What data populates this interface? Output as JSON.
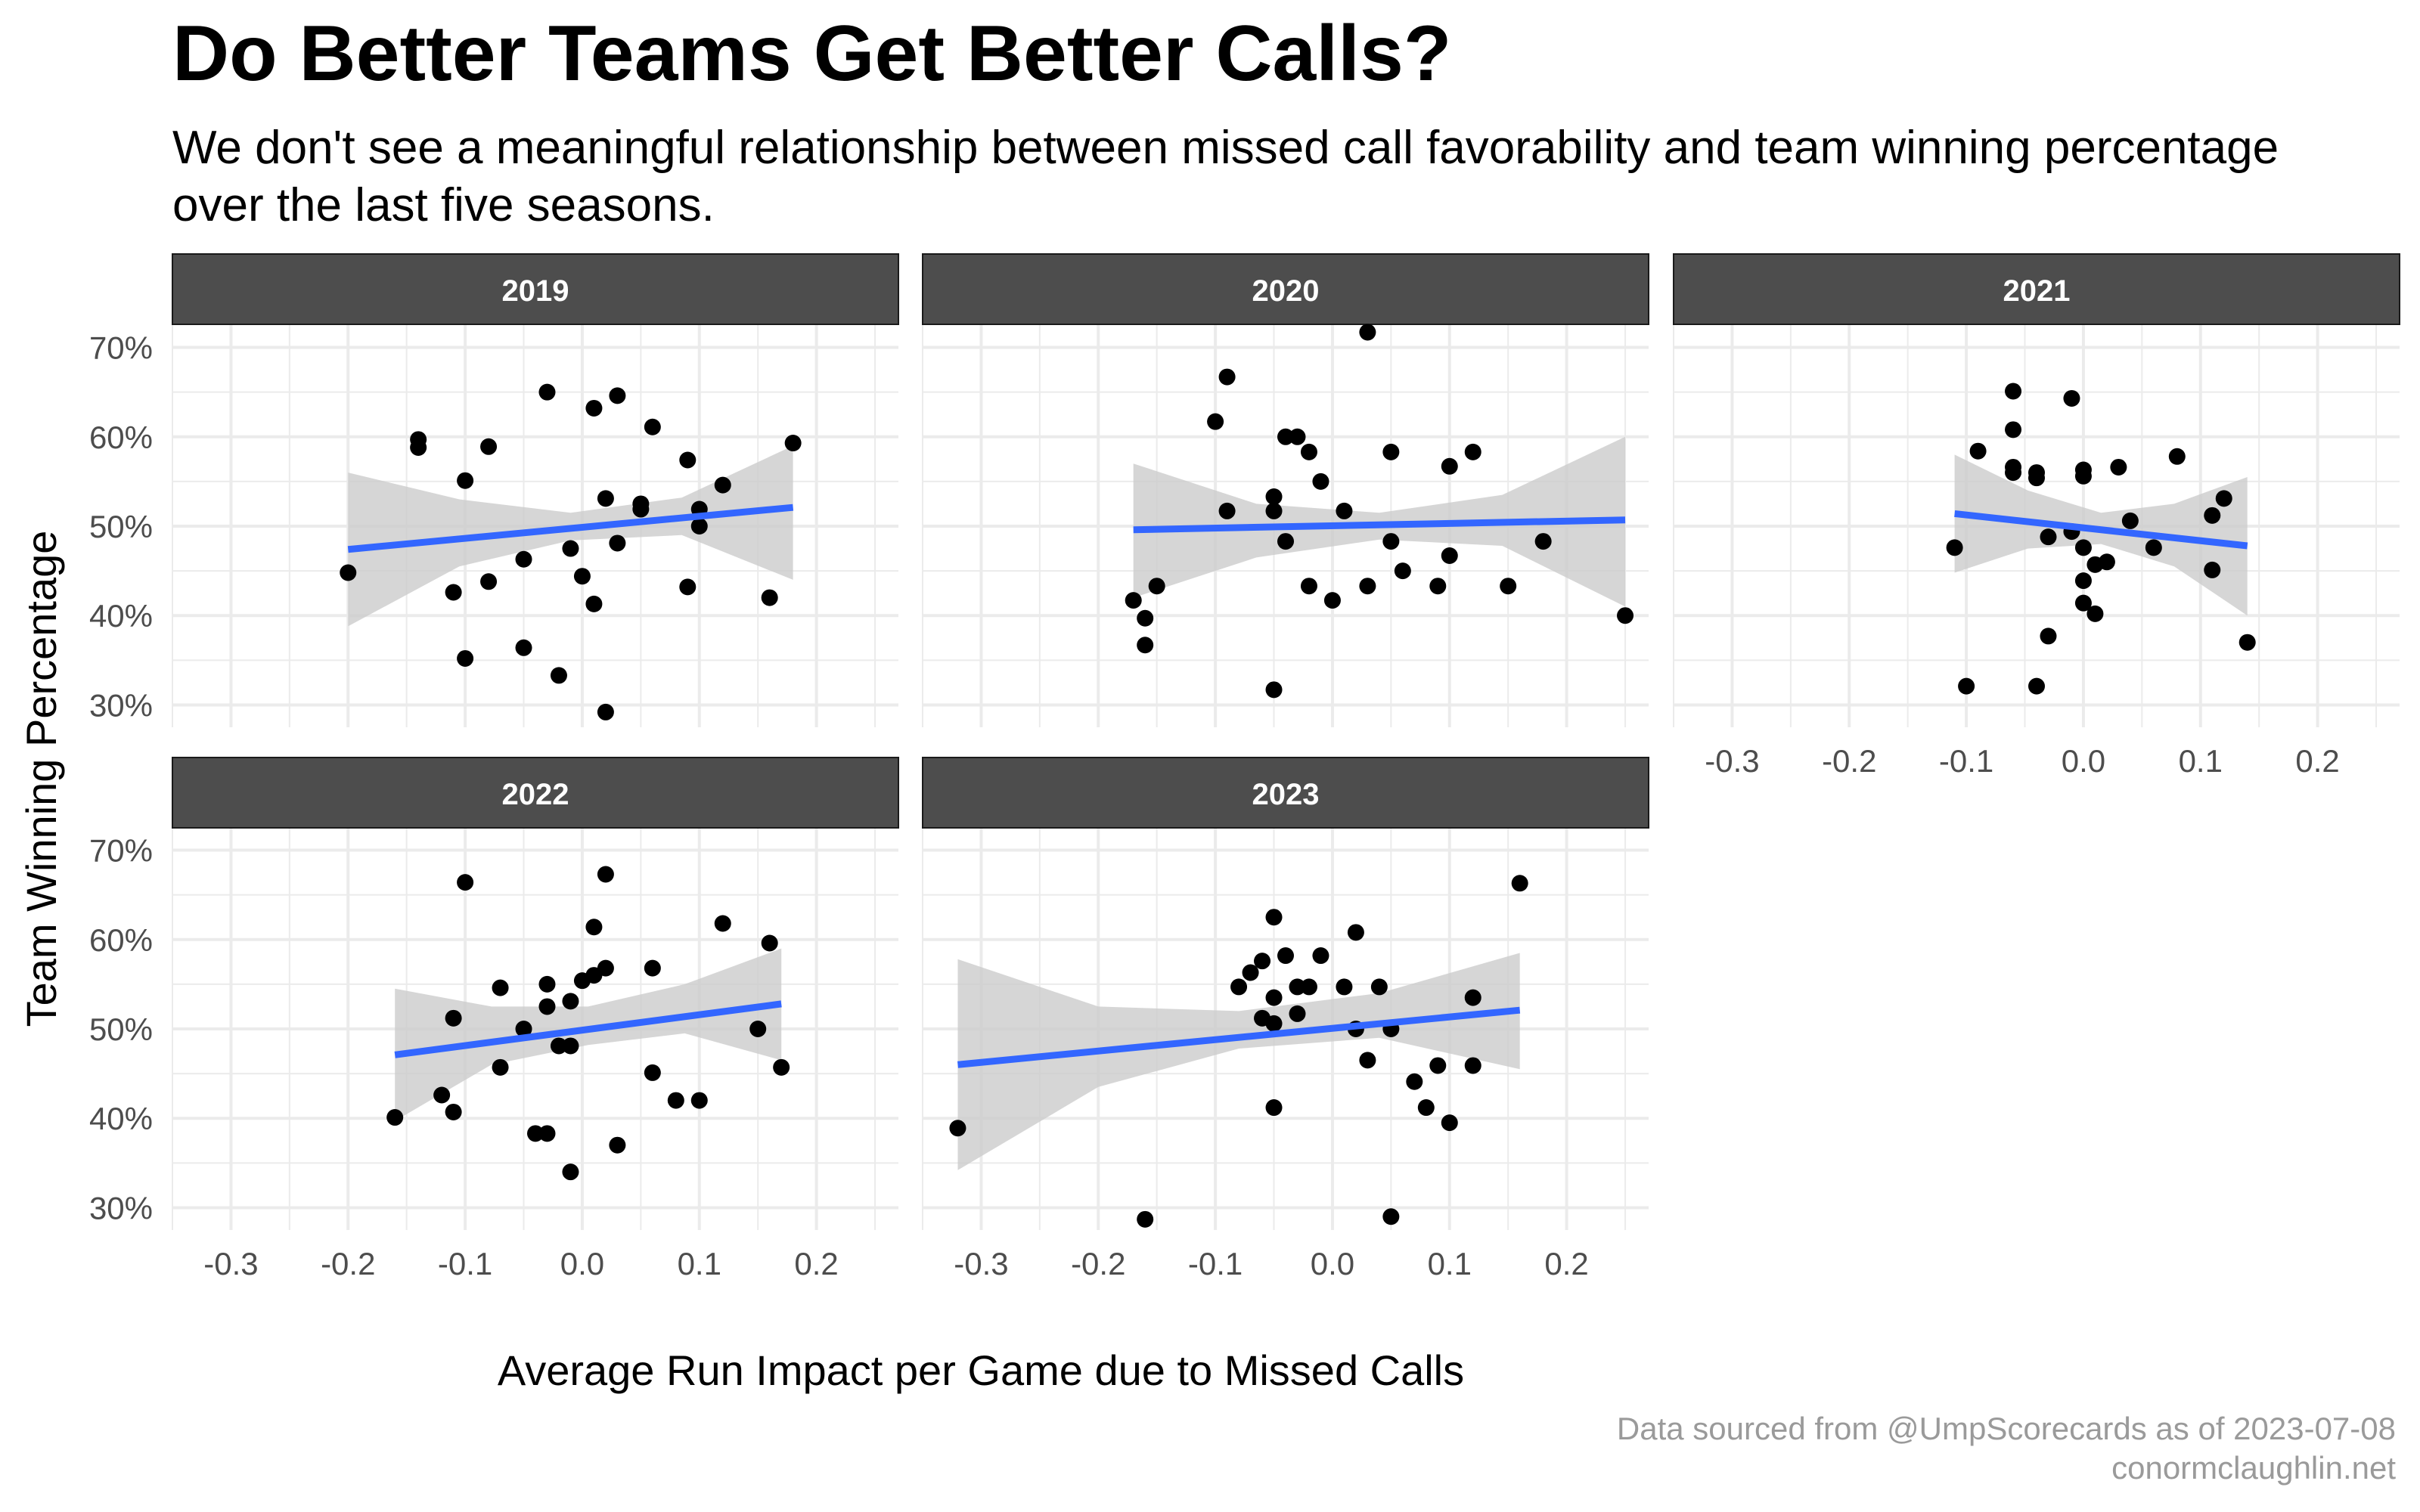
{
  "title": "Do Better Teams Get Better Calls?",
  "subtitle": "We don't see a meaningful relationship between missed call favorability and team winning percentage over the last five seasons.",
  "caption_lines": [
    "Data sourced from @UmpScorecards as of 2023-07-08",
    "conormclaughlin.net"
  ],
  "colors": {
    "point": "#000000",
    "trend": "#3366FF",
    "ribbon": "#cccccc",
    "strip": "#4d4d4d",
    "strip_text": "#ffffff",
    "grid": "#ebebeb"
  },
  "chart_data": {
    "type": "scatter",
    "xlabel": "Average Run Impact per Game due to Missed Calls",
    "ylabel": "Team Winning Percentage",
    "xlim": [
      -0.35,
      0.27
    ],
    "ylim": [
      0.275,
      0.725
    ],
    "x_ticks": [
      -0.3,
      -0.2,
      -0.1,
      0.0,
      0.1,
      0.2
    ],
    "x_tick_labels": [
      "-0.3",
      "-0.2",
      "-0.1",
      "0.0",
      "0.1",
      "0.2"
    ],
    "y_ticks": [
      0.3,
      0.4,
      0.5,
      0.6,
      0.7
    ],
    "y_tick_labels": [
      "30%",
      "40%",
      "50%",
      "60%",
      "70%"
    ],
    "facets": [
      {
        "label": "2019",
        "trend": {
          "x": [
            -0.2,
            0.18
          ],
          "y": [
            0.474,
            0.521
          ]
        },
        "ribbon_upper": [
          0.56,
          0.53,
          0.515,
          0.532,
          0.59
        ],
        "ribbon_lower": [
          0.388,
          0.455,
          0.484,
          0.49,
          0.44
        ],
        "points": [
          [
            -0.2,
            0.448
          ],
          [
            -0.14,
            0.597
          ],
          [
            -0.14,
            0.588
          ],
          [
            -0.11,
            0.426
          ],
          [
            -0.1,
            0.551
          ],
          [
            -0.1,
            0.352
          ],
          [
            -0.08,
            0.589
          ],
          [
            -0.08,
            0.438
          ],
          [
            -0.05,
            0.463
          ],
          [
            -0.05,
            0.364
          ],
          [
            -0.03,
            0.65
          ],
          [
            -0.02,
            0.333
          ],
          [
            -0.01,
            0.475
          ],
          [
            0.0,
            0.444
          ],
          [
            0.01,
            0.632
          ],
          [
            0.01,
            0.413
          ],
          [
            0.02,
            0.531
          ],
          [
            0.02,
            0.292
          ],
          [
            0.03,
            0.646
          ],
          [
            0.03,
            0.481
          ],
          [
            0.05,
            0.525
          ],
          [
            0.05,
            0.519
          ],
          [
            0.06,
            0.611
          ],
          [
            0.09,
            0.574
          ],
          [
            0.09,
            0.432
          ],
          [
            0.1,
            0.519
          ],
          [
            0.1,
            0.5
          ],
          [
            0.12,
            0.546
          ],
          [
            0.16,
            0.42
          ],
          [
            0.18,
            0.593
          ]
        ]
      },
      {
        "label": "2020",
        "trend": {
          "x": [
            -0.17,
            0.25
          ],
          "y": [
            0.496,
            0.507
          ]
        },
        "ribbon_upper": [
          0.57,
          0.525,
          0.515,
          0.535,
          0.6
        ],
        "ribbon_lower": [
          0.42,
          0.465,
          0.485,
          0.478,
          0.41
        ],
        "points": [
          [
            -0.17,
            0.417
          ],
          [
            -0.16,
            0.397
          ],
          [
            -0.16,
            0.367
          ],
          [
            -0.15,
            0.433
          ],
          [
            -0.1,
            0.617
          ],
          [
            -0.09,
            0.667
          ],
          [
            -0.09,
            0.517
          ],
          [
            -0.05,
            0.533
          ],
          [
            -0.05,
            0.517
          ],
          [
            -0.05,
            0.317
          ],
          [
            -0.04,
            0.6
          ],
          [
            -0.04,
            0.483
          ],
          [
            -0.03,
            0.6
          ],
          [
            -0.02,
            0.583
          ],
          [
            -0.02,
            0.433
          ],
          [
            -0.01,
            0.55
          ],
          [
            0.0,
            0.417
          ],
          [
            0.01,
            0.517
          ],
          [
            0.03,
            0.717
          ],
          [
            0.03,
            0.433
          ],
          [
            0.05,
            0.583
          ],
          [
            0.05,
            0.483
          ],
          [
            0.06,
            0.45
          ],
          [
            0.09,
            0.433
          ],
          [
            0.1,
            0.567
          ],
          [
            0.1,
            0.467
          ],
          [
            0.12,
            0.583
          ],
          [
            0.15,
            0.433
          ],
          [
            0.18,
            0.483
          ],
          [
            0.25,
            0.4
          ]
        ]
      },
      {
        "label": "2021",
        "trend": {
          "x": [
            -0.11,
            0.14
          ],
          "y": [
            0.514,
            0.478
          ]
        },
        "ribbon_upper": [
          0.58,
          0.54,
          0.515,
          0.525,
          0.555
        ],
        "ribbon_lower": [
          0.448,
          0.475,
          0.48,
          0.455,
          0.4
        ],
        "points": [
          [
            -0.11,
            0.476
          ],
          [
            -0.1,
            0.321
          ],
          [
            -0.09,
            0.584
          ],
          [
            -0.06,
            0.651
          ],
          [
            -0.06,
            0.608
          ],
          [
            -0.06,
            0.566
          ],
          [
            -0.06,
            0.56
          ],
          [
            -0.04,
            0.56
          ],
          [
            -0.04,
            0.554
          ],
          [
            -0.04,
            0.321
          ],
          [
            -0.03,
            0.488
          ],
          [
            -0.03,
            0.377
          ],
          [
            -0.01,
            0.643
          ],
          [
            -0.01,
            0.494
          ],
          [
            0.0,
            0.563
          ],
          [
            0.0,
            0.556
          ],
          [
            0.0,
            0.476
          ],
          [
            0.0,
            0.439
          ],
          [
            0.0,
            0.414
          ],
          [
            0.01,
            0.457
          ],
          [
            0.01,
            0.402
          ],
          [
            0.02,
            0.46
          ],
          [
            0.03,
            0.566
          ],
          [
            0.04,
            0.506
          ],
          [
            0.06,
            0.476
          ],
          [
            0.08,
            0.578
          ],
          [
            0.11,
            0.512
          ],
          [
            0.11,
            0.451
          ],
          [
            0.12,
            0.531
          ],
          [
            0.14,
            0.37
          ]
        ]
      },
      {
        "label": "2022",
        "trend": {
          "x": [
            -0.16,
            0.17
          ],
          "y": [
            0.471,
            0.528
          ]
        },
        "ribbon_upper": [
          0.545,
          0.525,
          0.525,
          0.55,
          0.59
        ],
        "ribbon_lower": [
          0.397,
          0.46,
          0.482,
          0.495,
          0.465
        ],
        "points": [
          [
            -0.16,
            0.401
          ],
          [
            -0.12,
            0.426
          ],
          [
            -0.11,
            0.512
          ],
          [
            -0.11,
            0.407
          ],
          [
            -0.1,
            0.664
          ],
          [
            -0.07,
            0.546
          ],
          [
            -0.07,
            0.457
          ],
          [
            -0.05,
            0.5
          ],
          [
            -0.04,
            0.383
          ],
          [
            -0.03,
            0.383
          ],
          [
            -0.03,
            0.55
          ],
          [
            -0.03,
            0.525
          ],
          [
            -0.02,
            0.481
          ],
          [
            -0.01,
            0.531
          ],
          [
            -0.01,
            0.481
          ],
          [
            -0.01,
            0.34
          ],
          [
            0.0,
            0.554
          ],
          [
            0.01,
            0.614
          ],
          [
            0.01,
            0.56
          ],
          [
            0.02,
            0.568
          ],
          [
            0.02,
            0.673
          ],
          [
            0.03,
            0.37
          ],
          [
            0.06,
            0.568
          ],
          [
            0.06,
            0.451
          ],
          [
            0.08,
            0.42
          ],
          [
            0.1,
            0.42
          ],
          [
            0.12,
            0.618
          ],
          [
            0.15,
            0.5
          ],
          [
            0.16,
            0.596
          ],
          [
            0.17,
            0.457
          ]
        ]
      },
      {
        "label": "2023",
        "trend": {
          "x": [
            -0.32,
            0.16
          ],
          "y": [
            0.46,
            0.521
          ]
        },
        "ribbon_upper": [
          0.578,
          0.525,
          0.52,
          0.54,
          0.585
        ],
        "ribbon_lower": [
          0.342,
          0.435,
          0.478,
          0.49,
          0.455
        ],
        "points": [
          [
            -0.32,
            0.389
          ],
          [
            -0.16,
            0.287
          ],
          [
            -0.08,
            0.547
          ],
          [
            -0.07,
            0.563
          ],
          [
            -0.06,
            0.576
          ],
          [
            -0.06,
            0.512
          ],
          [
            -0.05,
            0.625
          ],
          [
            -0.05,
            0.535
          ],
          [
            -0.05,
            0.506
          ],
          [
            -0.05,
            0.412
          ],
          [
            -0.04,
            0.582
          ],
          [
            -0.03,
            0.547
          ],
          [
            -0.03,
            0.517
          ],
          [
            -0.02,
            0.547
          ],
          [
            -0.01,
            0.582
          ],
          [
            0.01,
            0.547
          ],
          [
            0.02,
            0.608
          ],
          [
            0.02,
            0.5
          ],
          [
            0.03,
            0.465
          ],
          [
            0.04,
            0.547
          ],
          [
            0.05,
            0.5
          ],
          [
            0.05,
            0.29
          ],
          [
            0.07,
            0.441
          ],
          [
            0.08,
            0.412
          ],
          [
            0.09,
            0.459
          ],
          [
            0.1,
            0.395
          ],
          [
            0.12,
            0.535
          ],
          [
            0.12,
            0.459
          ],
          [
            0.16,
            0.663
          ]
        ]
      }
    ]
  }
}
